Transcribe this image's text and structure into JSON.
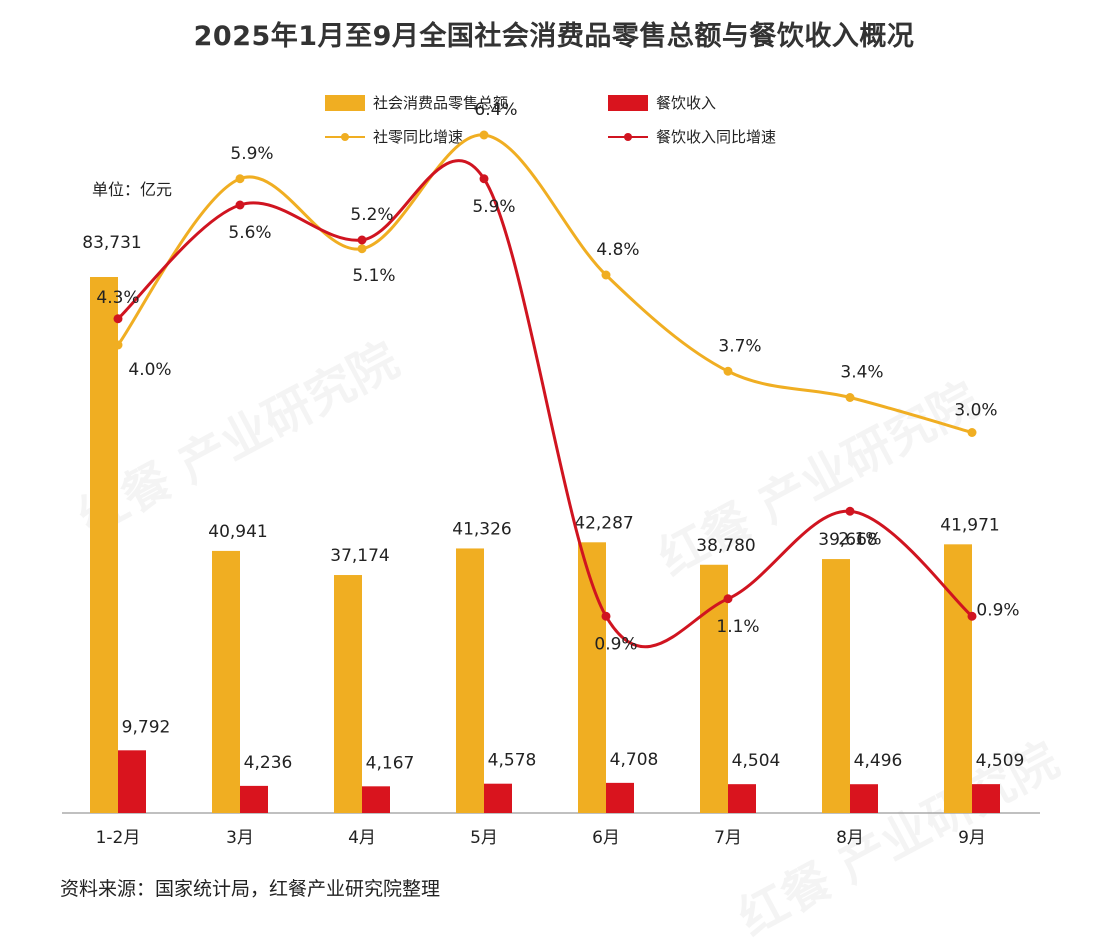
{
  "title": "2025年1月至9月全国社会消费品零售总额与餐饮收入概况",
  "unit_label": "单位：亿元",
  "source": "资料来源：国家统计局，红餐产业研究院整理",
  "watermark": "红餐 产业研究院",
  "legend": {
    "retail_total": "社会消费品零售总额",
    "catering_revenue": "餐饮收入",
    "retail_growth": "社零同比增速",
    "catering_growth": "餐饮收入同比增速"
  },
  "colors": {
    "retail": "#F0AE22",
    "catering": "#D9141E",
    "retail_line": "#F0AE22",
    "catering_line": "#D01420"
  },
  "chart_data": {
    "type": "bar",
    "categories": [
      "1-2月",
      "3月",
      "4月",
      "5月",
      "6月",
      "7月",
      "8月",
      "9月"
    ],
    "series": [
      {
        "name": "社会消费品零售总额",
        "kind": "bar",
        "values": [
          83731,
          40941,
          37174,
          41326,
          42287,
          38780,
          39668,
          41971
        ],
        "labels": [
          "83,731",
          "40,941",
          "37,174",
          "41,326",
          "42,287",
          "38,780",
          "39,668",
          "41,971"
        ]
      },
      {
        "name": "餐饮收入",
        "kind": "bar",
        "values": [
          9792,
          4236,
          4167,
          4578,
          4708,
          4504,
          4496,
          4509
        ],
        "labels": [
          "9,792",
          "4,236",
          "4,167",
          "4,578",
          "4,708",
          "4,504",
          "4,496",
          "4,509"
        ]
      },
      {
        "name": "社零同比增速",
        "kind": "line",
        "values": [
          4.0,
          5.9,
          5.1,
          6.4,
          4.8,
          3.7,
          3.4,
          3.0
        ],
        "labels": [
          "4.0%",
          "5.9%",
          "5.1%",
          "6.4%",
          "4.8%",
          "3.7%",
          "3.4%",
          "3.0%"
        ]
      },
      {
        "name": "餐饮收入同比增速",
        "kind": "line",
        "values": [
          4.3,
          5.6,
          5.2,
          5.9,
          0.9,
          1.1,
          2.1,
          0.9
        ],
        "labels": [
          "4.3%",
          "5.6%",
          "5.2%",
          "5.9%",
          "0.9%",
          "1.1%",
          "2.1%",
          "0.9%"
        ]
      }
    ]
  }
}
